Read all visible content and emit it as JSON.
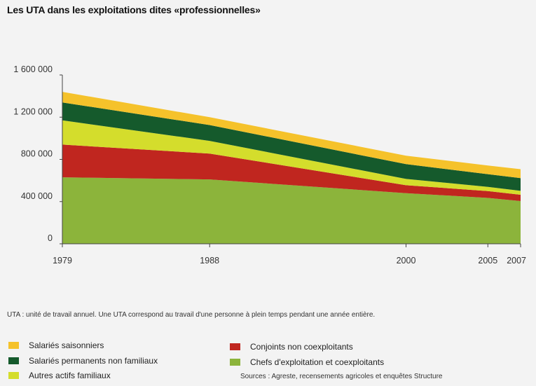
{
  "title": "Les UTA dans les exploitations dites «professionnelles»",
  "note": "UTA : unité de travail annuel. Une UTA correspond au travail d'une personne à plein temps pendant une année entière.",
  "source": "Sources : Agreste, recensements agricoles et enquêtes Structure",
  "chart_data": {
    "type": "area",
    "stacked": true,
    "x": [
      1979,
      1988,
      2000,
      2005,
      2007
    ],
    "ylim": [
      0,
      1600000
    ],
    "yticks": [
      0,
      400000,
      800000,
      1200000,
      1600000
    ],
    "ytick_labels": [
      "0",
      "400 000",
      "800 000",
      "1 200 000",
      "1 600 000"
    ],
    "xtick_labels": [
      "1979",
      "1988",
      "2000",
      "2005",
      "2007"
    ],
    "grid": false,
    "legend_position": "bottom",
    "series": [
      {
        "name": "Chefs d'exploitation et coexploitants",
        "color": "#8cb43b",
        "values": [
          630000,
          610000,
          480000,
          435000,
          405000
        ]
      },
      {
        "name": "Conjoints non coexploitants",
        "color": "#c0261f",
        "values": [
          310000,
          245000,
          75000,
          65000,
          60000
        ]
      },
      {
        "name": "Autres actifs familiaux",
        "color": "#d4dd2c",
        "values": [
          230000,
          120000,
          60000,
          40000,
          37000
        ]
      },
      {
        "name": "Salariés permanents non familiaux",
        "color": "#155a2c",
        "values": [
          170000,
          150000,
          140000,
          120000,
          120000
        ]
      },
      {
        "name": "Salariés saisonniers",
        "color": "#f5c22b",
        "values": [
          100000,
          75000,
          80000,
          82000,
          85000
        ]
      }
    ]
  },
  "legend": {
    "left": [
      {
        "label": "Salariés saisonniers",
        "color": "#f5c22b"
      },
      {
        "label": "Salariés permanents non familiaux",
        "color": "#155a2c"
      },
      {
        "label": "Autres actifs familiaux",
        "color": "#d4dd2c"
      }
    ],
    "right": [
      {
        "label": "Conjoints non coexploitants",
        "color": "#c0261f"
      },
      {
        "label": "Chefs d'exploitation et coexploitants",
        "color": "#8cb43b"
      }
    ]
  }
}
